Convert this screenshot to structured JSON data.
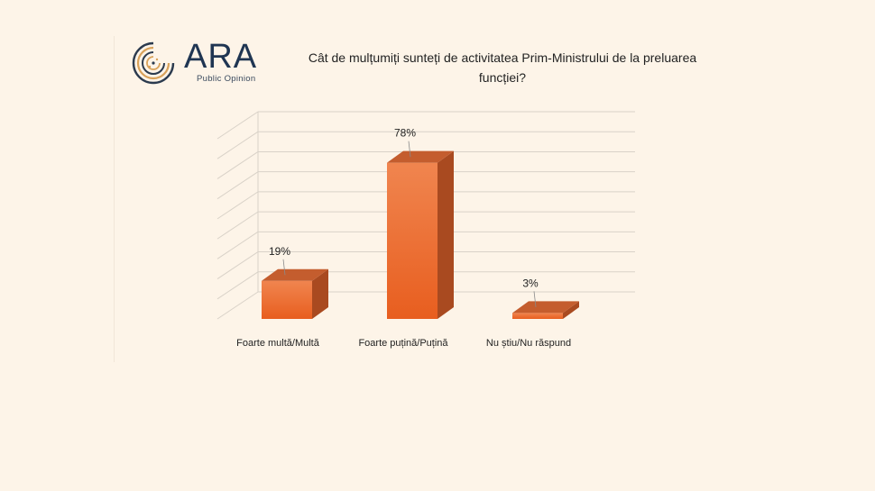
{
  "logo": {
    "word": "ARA",
    "subtitle": "Public Opinion"
  },
  "colors": {
    "background": "#fdf4e8",
    "bar_front_top": "#f0854f",
    "bar_front_bottom": "#e85e1f",
    "bar_side": "#a94a20",
    "bar_top": "#c45d2e",
    "gridline": "#d9d2c8",
    "logo_ring": "#d9a25a"
  },
  "chart_data": {
    "type": "bar",
    "style": "3d-column",
    "title": "Cât de mulțumiți sunteți de activitatea Prim-Ministrului de la preluarea funcției?",
    "categories": [
      "Foarte multă/Multă",
      "Foarte puțină/Puțină",
      "Nu știu/Nu răspund"
    ],
    "values": [
      19,
      78,
      3
    ],
    "value_labels": [
      "19%",
      "78%",
      "3%"
    ],
    "ylim": [
      0,
      90
    ],
    "grid": true,
    "legend": "none"
  }
}
